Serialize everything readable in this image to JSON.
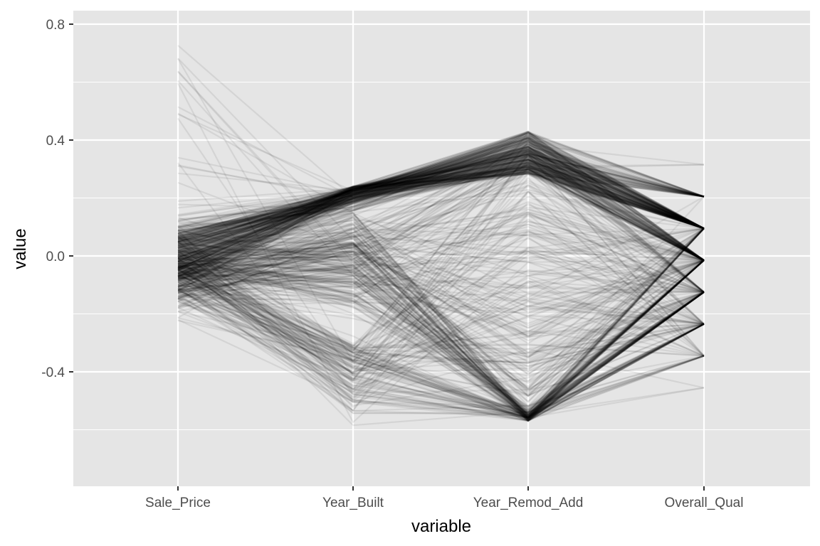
{
  "chart_data": {
    "type": "parallel_coordinates",
    "xlabel": "variable",
    "ylabel": "value",
    "categories": [
      "Sale_Price",
      "Year_Built",
      "Year_Remod_Add",
      "Overall_Qual"
    ],
    "ylim": [
      -0.82,
      0.82
    ],
    "yticks": [
      -0.4,
      0.0,
      0.4,
      0.8
    ],
    "ytick_labels": [
      "-0.4",
      "0.0",
      "0.4",
      "0.8"
    ],
    "y_minor_gridlines": [
      -0.6,
      -0.2,
      0.2,
      0.6
    ],
    "grid": true,
    "legend": "none",
    "line_color": "#000000",
    "line_alpha": 0.07,
    "panel_background": "#e5e5e5",
    "gridline_color": "#ffffff",
    "series_note_values": {
      "Overall_Qual_levels": [
        -0.565,
        -0.455,
        -0.345,
        -0.235,
        -0.125,
        -0.015,
        0.095,
        0.205,
        0.315,
        0.425
      ],
      "Year_Remod_Add_range": [
        -0.57,
        0.43
      ],
      "Year_Built_range": [
        -0.71,
        0.27
      ],
      "Sale_Price_range": [
        -0.23,
        0.77
      ]
    }
  }
}
